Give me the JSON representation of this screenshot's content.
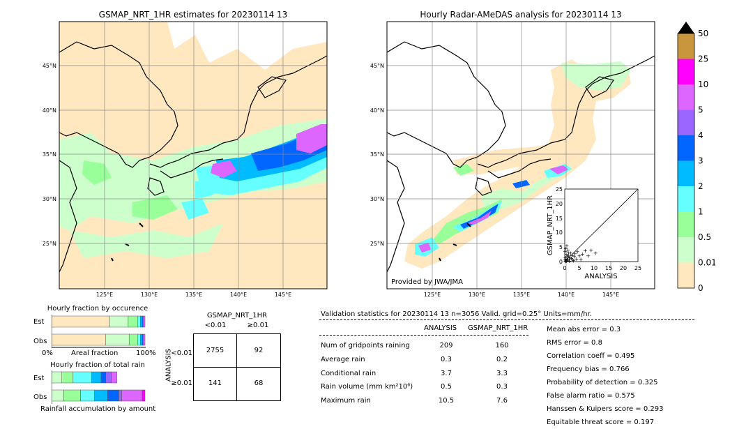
{
  "map_left": {
    "title": "GSMAP_NRT_1HR estimates for 20230114 13",
    "lat_labels": [
      "45°N",
      "40°N",
      "35°N",
      "30°N",
      "25°N"
    ],
    "lon_labels": [
      "125°E",
      "130°E",
      "135°E",
      "140°E",
      "145°E"
    ]
  },
  "map_right": {
    "title": "Hourly Radar-AMeDAS analysis for 20230114 13",
    "lat_labels": [
      "45°N",
      "40°N",
      "35°N",
      "30°N",
      "25°N"
    ],
    "lon_labels": [
      "125°E",
      "130°E",
      "135°E",
      "140°E",
      "145°E"
    ],
    "credit": "Provided by JWA/JMA"
  },
  "colorbar": {
    "labels": [
      "50",
      "25",
      "10",
      "5",
      "4",
      "3",
      "2",
      "1",
      "0.5",
      "0.01",
      "0"
    ],
    "colors": [
      "#c8963c",
      "#ff00ff",
      "#dd66ff",
      "#9966ff",
      "#0066ff",
      "#00bbff",
      "#66ffff",
      "#99ff99",
      "#ccffcc",
      "#ffe8bf"
    ]
  },
  "scatter": {
    "xlabel": "ANALYSIS",
    "ylabel": "GSMAP_NRT_1HR",
    "ticks": [
      "0",
      "5",
      "10",
      "15",
      "20",
      "25"
    ]
  },
  "occurrence": {
    "title": "Hourly fraction by occurence",
    "row_est": "Est",
    "row_obs": "Obs",
    "axis_left": "0%",
    "axis_mid": "Areal fraction",
    "axis_right": "100%"
  },
  "total_rain": {
    "title": "Hourly fraction of total rain",
    "row_est": "Est",
    "row_obs": "Obs",
    "caption": "Rainfall accumulation by amount"
  },
  "contingency": {
    "title": "GSMAP_NRT_1HR",
    "col1": "<0.01",
    "col2": "≥0.01",
    "row_axis": "ANALYSIS",
    "row1": "<0.01",
    "row2": "≥0.01",
    "c11": "2755",
    "c12": "92",
    "c21": "141",
    "c22": "68"
  },
  "validation": {
    "header": "Validation statistics for 20230114 13  n=3056 Valid. grid=0.25° Units=mm/hr.",
    "col_analysis": "ANALYSIS",
    "col_gsmap": "GSMAP_NRT_1HR",
    "rows": [
      {
        "label": "Num of gridpoints raining",
        "a": "209",
        "g": "160"
      },
      {
        "label": "Average rain",
        "a": "0.3",
        "g": "0.2"
      },
      {
        "label": "Conditional rain",
        "a": "3.7",
        "g": "3.3"
      },
      {
        "label": "Rain volume (mm km²10⁶)",
        "a": "0.5",
        "g": "0.3"
      },
      {
        "label": "Maximum rain",
        "a": "10.5",
        "g": "7.6"
      }
    ],
    "scores": [
      "Mean abs error =    0.3",
      "RMS error =    0.8",
      "Correlation coeff =  0.495",
      "Frequency bias =  0.766",
      "Probability of detection =  0.325",
      "False alarm ratio =  0.575",
      "Hanssen & Kuipers score =  0.293",
      "Equitable threat score =  0.197"
    ]
  },
  "chart_data": [
    {
      "type": "scatter",
      "title": "",
      "xlabel": "ANALYSIS",
      "ylabel": "GSMAP_NRT_1HR",
      "xlim": [
        0,
        25
      ],
      "ylim": [
        0,
        25
      ],
      "points": [
        [
          0.2,
          0.1
        ],
        [
          0.4,
          0.3
        ],
        [
          0.6,
          0.2
        ],
        [
          0.8,
          1.0
        ],
        [
          1.0,
          0.5
        ],
        [
          1.2,
          2.0
        ],
        [
          1.5,
          0.8
        ],
        [
          1.8,
          1.5
        ],
        [
          2.0,
          3.0
        ],
        [
          2.3,
          1.2
        ],
        [
          2.6,
          2.2
        ],
        [
          3.0,
          0.4
        ],
        [
          3.2,
          1.8
        ],
        [
          3.5,
          2.8
        ],
        [
          4.0,
          1.0
        ],
        [
          4.3,
          3.5
        ],
        [
          5.0,
          2.0
        ],
        [
          5.5,
          0.9
        ],
        [
          6.0,
          2.6
        ],
        [
          7.0,
          3.8
        ],
        [
          8.0,
          2.0
        ],
        [
          9.0,
          4.0
        ],
        [
          10.5,
          3.0
        ],
        [
          0.1,
          3.6
        ],
        [
          0.3,
          4.6
        ],
        [
          0.5,
          2.6
        ],
        [
          0.7,
          5.5
        ],
        [
          1.1,
          4.0
        ],
        [
          0.2,
          1.4
        ],
        [
          0.9,
          1.9
        ],
        [
          1.6,
          0.3
        ],
        [
          2.8,
          0.6
        ],
        [
          0.1,
          0.6
        ],
        [
          0.5,
          0.9
        ],
        [
          1.3,
          3.0
        ]
      ]
    },
    {
      "type": "bar",
      "title": "Hourly fraction by occurence",
      "categories": [
        "Est",
        "Obs"
      ],
      "series": [
        {
          "color": "#ffe8bf",
          "values": [
            0.62,
            0.58
          ]
        },
        {
          "color": "#ccffcc",
          "values": [
            0.2,
            0.25
          ]
        },
        {
          "color": "#99ff99",
          "values": [
            0.1,
            0.09
          ]
        },
        {
          "color": "#66ffff",
          "values": [
            0.03,
            0.03
          ]
        },
        {
          "color": "#00bbff",
          "values": [
            0.02,
            0.02
          ]
        },
        {
          "color": "#0066ff",
          "values": [
            0.01,
            0.01
          ]
        },
        {
          "color": "#dd66ff",
          "values": [
            0.02,
            0.02
          ]
        }
      ]
    },
    {
      "type": "bar",
      "title": "Hourly fraction of total rain",
      "categories": [
        "Est",
        "Obs"
      ],
      "series": [
        {
          "color": "#ccffcc",
          "values": [
            0.11,
            0.13
          ]
        },
        {
          "color": "#99ff99",
          "values": [
            0.12,
            0.18
          ]
        },
        {
          "color": "#66ffff",
          "values": [
            0.2,
            0.15
          ]
        },
        {
          "color": "#00bbff",
          "values": [
            0.1,
            0.14
          ]
        },
        {
          "color": "#0066ff",
          "values": [
            0.05,
            0.12
          ]
        },
        {
          "color": "#9966ff",
          "values": [
            0.06,
            0.03
          ]
        },
        {
          "color": "#dd66ff",
          "values": [
            0.06,
            0.22
          ]
        },
        {
          "color": "#ff00ff",
          "values": [
            0.0,
            0.03
          ]
        }
      ]
    }
  ]
}
